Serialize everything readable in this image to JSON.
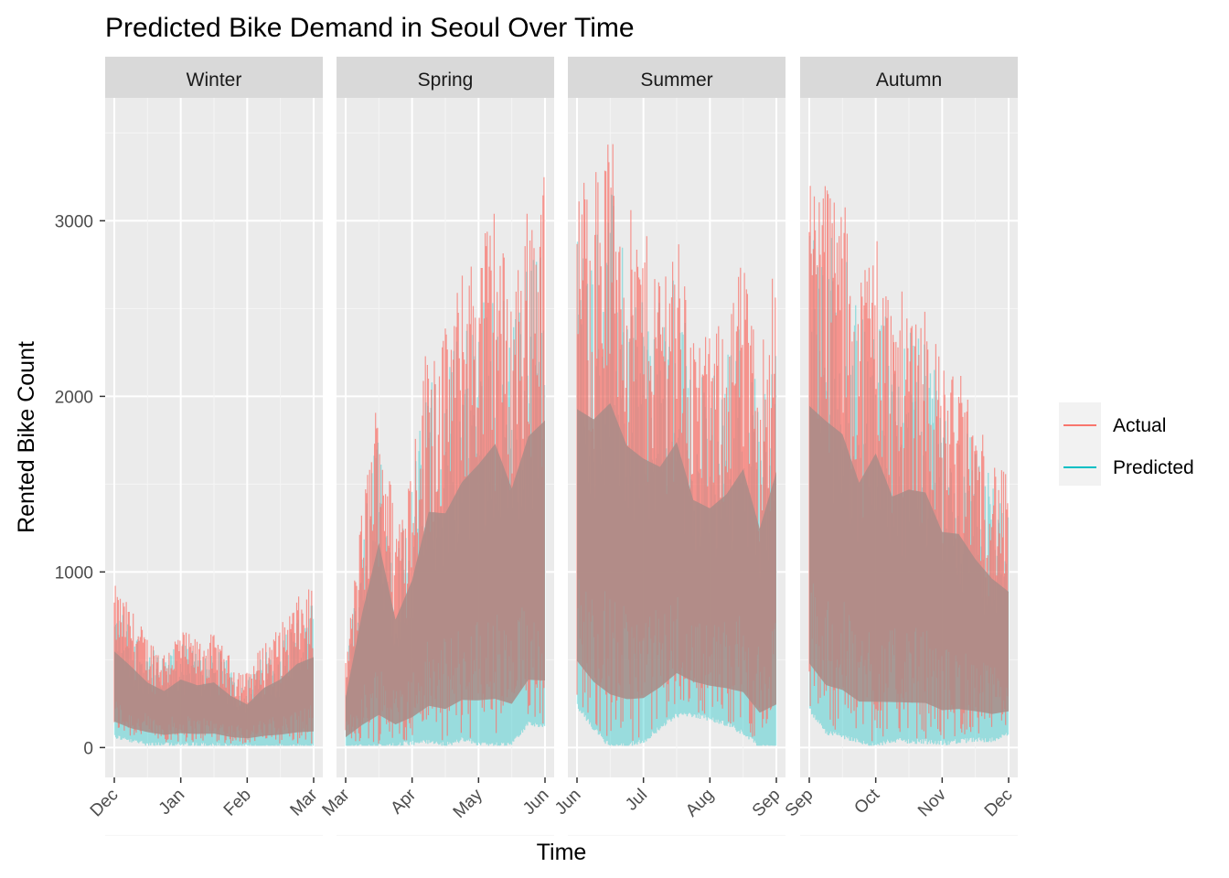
{
  "chart_data": {
    "type": "line",
    "title": "Predicted Bike Demand in Seoul Over Time",
    "xlabel": "Time",
    "ylabel": "Rented Bike Count",
    "ylim": [
      -170,
      3700
    ],
    "yticks": [
      0,
      1000,
      2000,
      3000
    ],
    "grid": true,
    "legend_position": "right",
    "series": [
      {
        "name": "Actual",
        "color": "#F8766D"
      },
      {
        "name": "Predicted",
        "color": "#00BFC4"
      }
    ],
    "facets": [
      {
        "label": "Winter",
        "ticks": [
          "Dec",
          "Jan",
          "Feb",
          "Mar"
        ],
        "envelope": [
          {
            "date": "Dec 1",
            "min": 80,
            "max": 930
          },
          {
            "date": "Dec 8",
            "min": 50,
            "max": 800
          },
          {
            "date": "Dec 15",
            "min": 40,
            "max": 640
          },
          {
            "date": "Dec 22",
            "min": 30,
            "max": 560
          },
          {
            "date": "Jan 1",
            "min": 30,
            "max": 680
          },
          {
            "date": "Jan 8",
            "min": 30,
            "max": 620
          },
          {
            "date": "Jan 15",
            "min": 30,
            "max": 650
          },
          {
            "date": "Jan 22",
            "min": 20,
            "max": 520
          },
          {
            "date": "Feb 1",
            "min": 20,
            "max": 430
          },
          {
            "date": "Feb 8",
            "min": 20,
            "max": 600
          },
          {
            "date": "Feb 15",
            "min": 20,
            "max": 690
          },
          {
            "date": "Feb 22",
            "min": 20,
            "max": 850
          },
          {
            "date": "Feb 28",
            "min": 20,
            "max": 920
          }
        ]
      },
      {
        "label": "Spring",
        "ticks": [
          "Mar",
          "Apr",
          "May",
          "Jun"
        ],
        "envelope": [
          {
            "date": "Mar 1",
            "min": 20,
            "max": 500
          },
          {
            "date": "Mar 8",
            "min": 20,
            "max": 1380
          },
          {
            "date": "Mar 15",
            "min": 20,
            "max": 2100
          },
          {
            "date": "Mar 22",
            "min": 30,
            "max": 1300
          },
          {
            "date": "Apr 1",
            "min": 40,
            "max": 1700
          },
          {
            "date": "Apr 8",
            "min": 50,
            "max": 2400
          },
          {
            "date": "Apr 15",
            "min": 30,
            "max": 2400
          },
          {
            "date": "Apr 22",
            "min": 60,
            "max": 2700
          },
          {
            "date": "May 1",
            "min": 40,
            "max": 2900
          },
          {
            "date": "May 8",
            "min": 30,
            "max": 3120
          },
          {
            "date": "May 15",
            "min": 40,
            "max": 2650
          },
          {
            "date": "May 22",
            "min": 150,
            "max": 3100
          },
          {
            "date": "May 31",
            "min": 130,
            "max": 3280
          }
        ]
      },
      {
        "label": "Summer",
        "ticks": [
          "Jun",
          "Jul",
          "Aug",
          "Sep"
        ],
        "envelope": [
          {
            "date": "Jun 1",
            "min": 250,
            "max": 3300
          },
          {
            "date": "Jun 8",
            "min": 120,
            "max": 3300
          },
          {
            "date": "Jun 15",
            "min": 20,
            "max": 3550
          },
          {
            "date": "Jun 22",
            "min": 30,
            "max": 3100
          },
          {
            "date": "Jul 1",
            "min": 50,
            "max": 2950
          },
          {
            "date": "Jul 8",
            "min": 130,
            "max": 2800
          },
          {
            "date": "Jul 15",
            "min": 200,
            "max": 3000
          },
          {
            "date": "Jul 22",
            "min": 200,
            "max": 2400
          },
          {
            "date": "Aug 1",
            "min": 180,
            "max": 2330
          },
          {
            "date": "Aug 8",
            "min": 150,
            "max": 2500
          },
          {
            "date": "Aug 15",
            "min": 100,
            "max": 2800
          },
          {
            "date": "Aug 22",
            "min": 20,
            "max": 2250
          },
          {
            "date": "Aug 31",
            "min": 20,
            "max": 2840
          }
        ]
      },
      {
        "label": "Autumn",
        "ticks": [
          "Sep",
          "Oct",
          "Nov",
          "Dec"
        ],
        "envelope": [
          {
            "date": "Sep 1",
            "min": 230,
            "max": 3350
          },
          {
            "date": "Sep 8",
            "min": 100,
            "max": 3300
          },
          {
            "date": "Sep 15",
            "min": 80,
            "max": 3180
          },
          {
            "date": "Sep 22",
            "min": 50,
            "max": 2700
          },
          {
            "date": "Oct 1",
            "min": 20,
            "max": 3030
          },
          {
            "date": "Oct 8",
            "min": 60,
            "max": 2550
          },
          {
            "date": "Oct 15",
            "min": 50,
            "max": 2630
          },
          {
            "date": "Oct 22",
            "min": 50,
            "max": 2600
          },
          {
            "date": "Nov 1",
            "min": 40,
            "max": 2200
          },
          {
            "date": "Nov 8",
            "min": 50,
            "max": 2170
          },
          {
            "date": "Nov 15",
            "min": 60,
            "max": 1900
          },
          {
            "date": "Nov 22",
            "min": 60,
            "max": 1700
          },
          {
            "date": "Nov 30",
            "min": 90,
            "max": 1540
          }
        ]
      }
    ]
  }
}
